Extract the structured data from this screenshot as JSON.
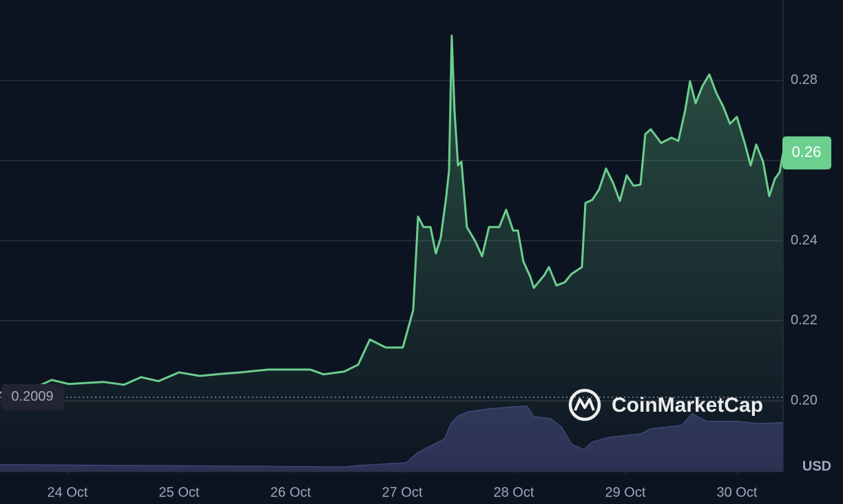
{
  "chart_data": {
    "type": "line",
    "unit": "USD",
    "watermark": "CoinMarketCap",
    "color": "#6ccf8e",
    "x": [
      -0.605,
      -0.512,
      -0.358,
      -0.142,
      0.012,
      0.198,
      0.321,
      0.506,
      0.66,
      0.815,
      1.0,
      1.185,
      1.37,
      1.556,
      1.802,
      1.988,
      2.173,
      2.296,
      2.481,
      2.605,
      2.71,
      2.852,
      3.006,
      3.099,
      3.142,
      3.191,
      3.253,
      3.302,
      3.346,
      3.395,
      3.42,
      3.444,
      3.469,
      3.5,
      3.531,
      3.58,
      3.654,
      3.716,
      3.778,
      3.87,
      3.932,
      3.994,
      4.037,
      4.086,
      4.148,
      4.179,
      4.272,
      4.315,
      4.383,
      4.457,
      4.519,
      4.611,
      4.642,
      4.704,
      4.765,
      4.827,
      4.889,
      4.951,
      5.012,
      5.074,
      5.136,
      5.179,
      5.228,
      5.321,
      5.414,
      5.475,
      5.537,
      5.58,
      5.63,
      5.691,
      5.753,
      5.815,
      5.877,
      5.938,
      6.0,
      6.074,
      6.123,
      6.173,
      6.235,
      6.29,
      6.34,
      6.383,
      6.414
    ],
    "values": [
      0.2021,
      0.2018,
      0.2024,
      0.2052,
      0.2042,
      0.2045,
      0.2047,
      0.204,
      0.2059,
      0.2049,
      0.2071,
      0.2062,
      0.2067,
      0.2071,
      0.2078,
      0.2078,
      0.2078,
      0.2066,
      0.2073,
      0.209,
      0.2153,
      0.2133,
      0.2133,
      0.2227,
      0.246,
      0.2434,
      0.2434,
      0.2368,
      0.2408,
      0.2511,
      0.2575,
      0.2912,
      0.2726,
      0.2588,
      0.2597,
      0.2434,
      0.2399,
      0.2361,
      0.2434,
      0.2434,
      0.2477,
      0.2425,
      0.2425,
      0.2348,
      0.231,
      0.2282,
      0.2313,
      0.2334,
      0.2288,
      0.2296,
      0.2317,
      0.2334,
      0.2494,
      0.2502,
      0.2528,
      0.258,
      0.2545,
      0.2499,
      0.2563,
      0.2537,
      0.254,
      0.2666,
      0.2678,
      0.2644,
      0.2657,
      0.2649,
      0.2726,
      0.2798,
      0.2743,
      0.2786,
      0.2815,
      0.2769,
      0.2735,
      0.2692,
      0.2709,
      0.264,
      0.2588,
      0.264,
      0.2597,
      0.2511,
      0.2554,
      0.2571,
      0.2619
    ],
    "xlim": [
      -0.605,
      6.414
    ],
    "xticks": [
      {
        "value": 0,
        "label": "24 Oct"
      },
      {
        "value": 1,
        "label": "25 Oct"
      },
      {
        "value": 2,
        "label": "26 Oct"
      },
      {
        "value": 3,
        "label": "27 Oct"
      },
      {
        "value": 4,
        "label": "28 Oct"
      },
      {
        "value": 5,
        "label": "29 Oct"
      },
      {
        "value": 6,
        "label": "30 Oct"
      }
    ],
    "ylim": [
      0.1823,
      0.3001
    ],
    "yticks": [
      {
        "value": 0.2,
        "label": "0.20"
      },
      0.22,
      0.24,
      0.26,
      0.28
    ],
    "grid": true,
    "reference": 0.2009,
    "current_price": {
      "value": 0.2619,
      "label": "0.26"
    },
    "volume": {
      "color": "#2c3154",
      "x": [
        -0.605,
        2.481,
        2.605,
        3.037,
        3.13,
        3.284,
        3.377,
        3.438,
        3.5,
        3.593,
        3.778,
        3.963,
        4.117,
        4.179,
        4.333,
        4.426,
        4.519,
        4.63,
        4.704,
        4.858,
        5.136,
        5.228,
        5.506,
        5.599,
        5.722,
        6.0,
        6.185,
        6.414
      ],
      "values": [
        1.5,
        1.0,
        1.3,
        1.9,
        3.9,
        5.8,
        6.9,
        10.2,
        11.8,
        12.7,
        13.3,
        13.7,
        13.9,
        11.7,
        11.2,
        9.5,
        5.8,
        4.7,
        6.3,
        7.3,
        8.0,
        9.1,
        9.8,
        12.3,
        10.7,
        10.7,
        10.2,
        10.4
      ],
      "y2lim": [
        0,
        100
      ]
    }
  }
}
